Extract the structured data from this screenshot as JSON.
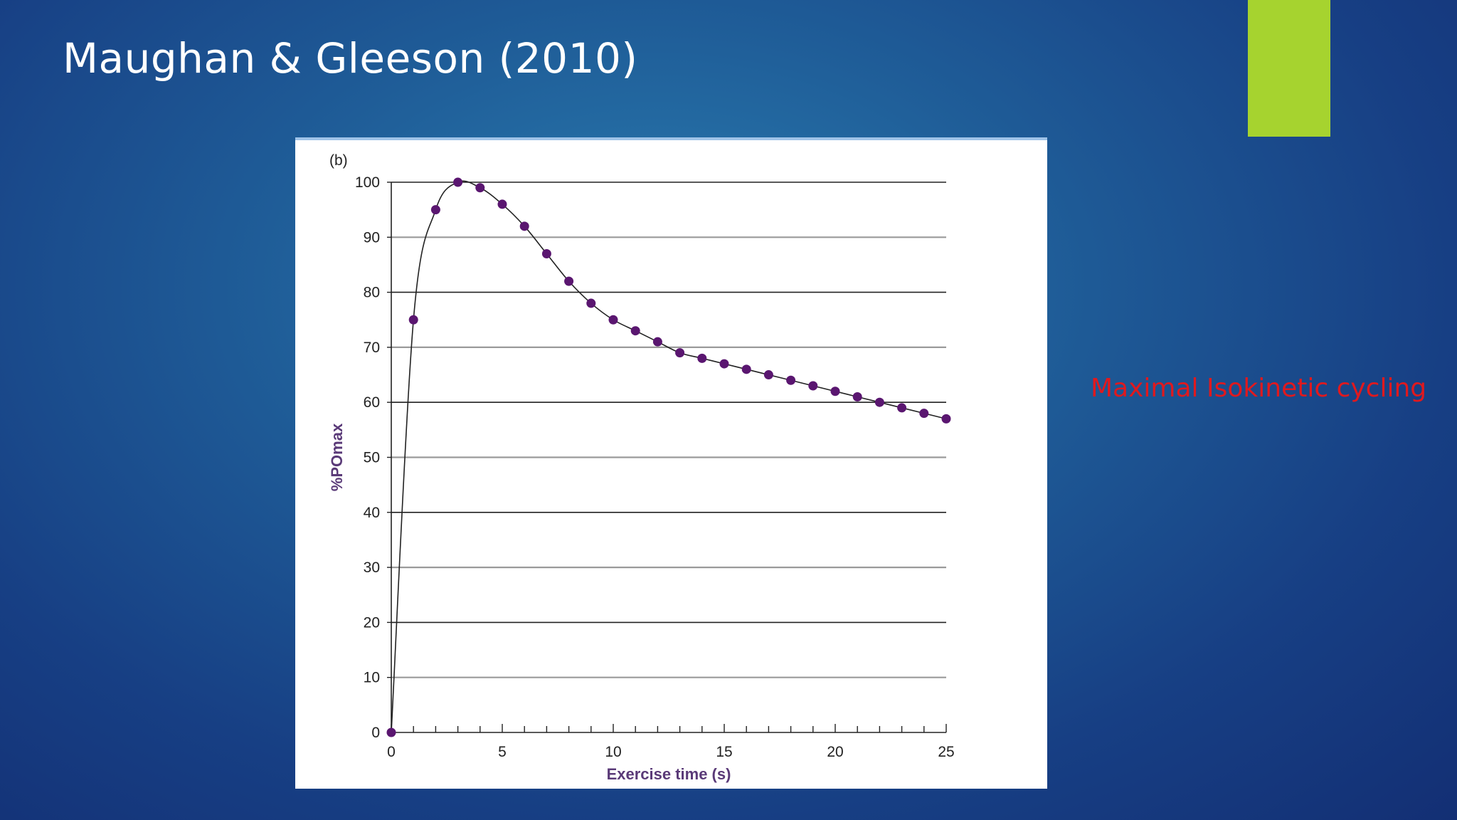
{
  "slide": {
    "title": "Maughan & Gleeson (2010)",
    "caption": "Maximal Isokinetic cycling"
  },
  "colors": {
    "accent": "#a6d32f",
    "caption": "#e0191e",
    "points": "#5a1670"
  },
  "chart_data": {
    "type": "scatter",
    "panel_label": "(b)",
    "xlabel": "Exercise time (s)",
    "ylabel": "%POmax",
    "xlim": [
      0,
      25
    ],
    "ylim": [
      0,
      100
    ],
    "x_ticks": [
      0,
      5,
      10,
      15,
      20,
      25
    ],
    "y_ticks": [
      0,
      10,
      20,
      30,
      40,
      50,
      60,
      70,
      80,
      90,
      100
    ],
    "grid": true,
    "fitted_line": true,
    "series": [
      {
        "x": [
          0,
          1,
          2,
          3,
          4,
          5,
          6,
          7,
          8,
          9,
          10,
          11,
          12,
          13,
          14,
          15,
          16,
          17,
          18,
          19,
          20,
          21,
          22,
          23,
          24,
          25
        ],
        "y": [
          0,
          75,
          95,
          100,
          99,
          96,
          92,
          87,
          82,
          78,
          75,
          73,
          71,
          69,
          68,
          67,
          66,
          65,
          64,
          63,
          62,
          61,
          60,
          59,
          58,
          57
        ]
      }
    ]
  }
}
